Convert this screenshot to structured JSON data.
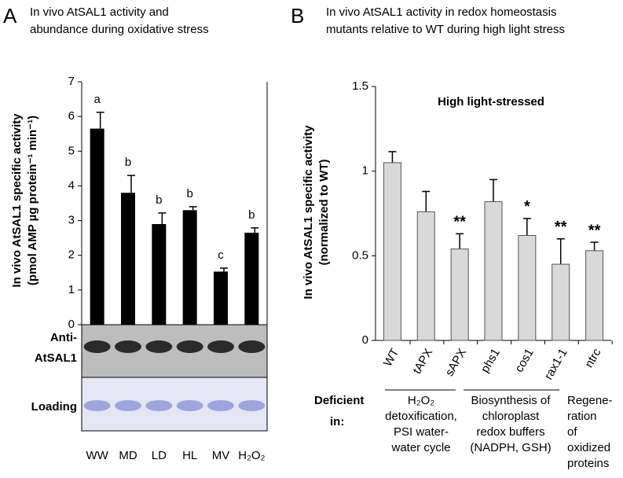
{
  "chart_data": [
    {
      "type": "bar",
      "panel": "A",
      "title": [
        "In vivo AtSAL1 activity and",
        "abundance during oxidative stress"
      ],
      "ylabel": [
        "In vivo AtSAL1 specific activity",
        "(pmol AMP µg protein⁻¹ min⁻¹)"
      ],
      "categories": [
        "WW",
        "MD",
        "LD",
        "HL",
        "MV",
        "H₂O₂"
      ],
      "values": [
        5.65,
        3.8,
        2.9,
        3.3,
        1.53,
        2.65
      ],
      "errors": [
        0.47,
        0.5,
        0.32,
        0.1,
        0.1,
        0.14
      ],
      "annotations": [
        "a",
        "b",
        "b",
        "b",
        "c",
        "b"
      ],
      "color": "#000000",
      "ylim": [
        0,
        7
      ],
      "yticks": [
        0,
        1,
        2,
        3,
        4,
        5,
        6,
        7
      ],
      "blot_labels": [
        [
          "Anti-",
          "AtSAL1"
        ],
        [
          "Loading"
        ]
      ]
    },
    {
      "type": "bar",
      "panel": "B",
      "title": [
        "In vivo AtSAL1 activity in redox homeostasis",
        "mutants relative to WT during high light stress"
      ],
      "inner_title": "High light-stressed",
      "ylabel": [
        "In vivo AtSAL1 specific activity",
        "(normalized to WT)"
      ],
      "categories": [
        "WT",
        "tAPX",
        "sAPX",
        "phs1",
        "cos1",
        "rax1-1",
        "ntrc"
      ],
      "values": [
        1.05,
        0.76,
        0.54,
        0.82,
        0.62,
        0.45,
        0.53
      ],
      "errors": [
        0.065,
        0.12,
        0.09,
        0.13,
        0.1,
        0.15,
        0.05
      ],
      "annotations": [
        null,
        null,
        "**",
        null,
        "*",
        "**",
        "**"
      ],
      "color": "#d9d9d9",
      "ylim": [
        0,
        1.5
      ],
      "yticks": [
        0,
        0.5,
        1,
        1.5
      ],
      "groups_label": [
        "Deficient",
        "in:"
      ],
      "groups": [
        [
          "H₂O₂",
          "detoxification,",
          "PSI water-",
          "water cycle"
        ],
        [
          "Biosynthesis of",
          "chloroplast",
          "redox buffers",
          "(NADPH, GSH)"
        ],
        [
          "Regene-",
          "ration",
          "of",
          "oxidized",
          "proteins"
        ]
      ]
    }
  ]
}
